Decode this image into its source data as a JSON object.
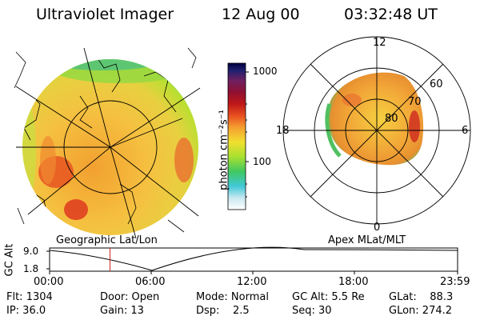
{
  "header": {
    "instrument": "Ultraviolet Imager",
    "date": "12 Aug 00",
    "time": "03:32:48 UT"
  },
  "colorbar": {
    "unit_label": "photon cm⁻²s⁻¹",
    "tick_labels": [
      "1000",
      "100"
    ]
  },
  "geo_panel": {
    "caption": "Geographic Lat/Lon"
  },
  "polar_panel": {
    "caption": "Apex MLat/MLT",
    "mlt_labels": [
      "12",
      "18",
      "6",
      "0"
    ],
    "lat_labels": [
      "60",
      "70",
      "80"
    ]
  },
  "altitude_plot": {
    "ylabel": "GC Alt",
    "y_ticks": [
      "9.0",
      "1.8"
    ],
    "x_ticks": [
      "00:00",
      "06:00",
      "12:00",
      "18:00",
      "23:59"
    ],
    "current_time_fraction": 0.148
  },
  "status": {
    "flt": "Flt: 1304",
    "ip": "IP: 36.0",
    "door": "Door: Open",
    "gain": "Gain: 13",
    "mode": "Mode: Normal",
    "dsp": "Dsp:    2.5",
    "gc_alt": "GC Alt: 5.5 Re",
    "seq": "Seq: 30",
    "glat": "GLat:    88.3",
    "glon": "GLon: 274.2"
  },
  "colors": {
    "aurora_bright": "#e8501a",
    "aurora_mid": "#f5b830",
    "aurora_low": "#b8e030",
    "edge_green": "#40c060",
    "cursor_red": "#cc2222"
  }
}
